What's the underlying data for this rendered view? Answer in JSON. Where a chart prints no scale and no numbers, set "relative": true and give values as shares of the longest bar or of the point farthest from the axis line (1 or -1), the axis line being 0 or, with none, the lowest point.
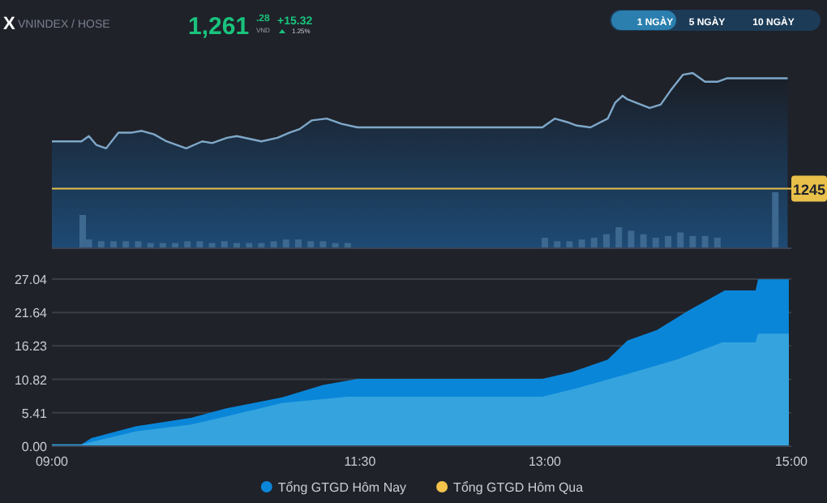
{
  "chart_data": [
    {
      "type": "area",
      "title": "X",
      "subtitle": "VNINDEX / HOSE",
      "annotations": [
        "1,261",
        ".28",
        "VND",
        "+15.32",
        "1.25%",
        "1 NGÀY",
        "5 NGÀY",
        "10 NGÀY",
        "1245"
      ],
      "relative": true,
      "xlim": [
        9,
        15
      ],
      "series": [
        {
          "color": "#7fa8c9",
          "x": [
            9.0,
            9.24,
            9.3,
            9.36,
            9.44,
            9.54,
            9.65,
            9.73,
            9.83,
            9.93,
            10.09,
            10.22,
            10.3,
            10.42,
            10.5,
            10.7,
            10.83,
            10.93,
            11.01,
            11.11,
            11.23,
            11.35,
            11.48,
            12.98,
            13.08,
            13.18,
            13.26,
            13.37,
            13.51,
            13.57,
            13.63,
            13.67,
            13.85,
            13.94,
            14.02,
            14.12,
            14.2,
            14.3,
            14.4,
            14.48,
            14.97
          ],
          "values": [
            0.61,
            0.61,
            0.64,
            0.59,
            0.57,
            0.66,
            0.66,
            0.67,
            0.65,
            0.61,
            0.57,
            0.61,
            0.6,
            0.63,
            0.64,
            0.61,
            0.63,
            0.66,
            0.68,
            0.73,
            0.74,
            0.71,
            0.69,
            0.69,
            0.74,
            0.72,
            0.7,
            0.69,
            0.74,
            0.83,
            0.87,
            0.85,
            0.8,
            0.82,
            0.9,
            0.99,
            1.0,
            0.95,
            0.95,
            0.97,
            0.97
          ]
        },
        {
          "type": "bar",
          "color": "#3d6890",
          "x": [
            9.25,
            9.3,
            9.4,
            9.5,
            9.6,
            9.7,
            9.8,
            9.9,
            10.0,
            10.1,
            10.2,
            10.3,
            10.4,
            10.5,
            10.6,
            10.7,
            10.8,
            10.9,
            11.0,
            11.1,
            11.2,
            11.3,
            11.4,
            13.0,
            13.1,
            13.2,
            13.3,
            13.4,
            13.5,
            13.6,
            13.7,
            13.8,
            13.9,
            14.0,
            14.1,
            14.2,
            14.3,
            14.4,
            14.87
          ],
          "values": [
            0.19,
            0.05,
            0.04,
            0.04,
            0.04,
            0.04,
            0.03,
            0.03,
            0.03,
            0.04,
            0.04,
            0.03,
            0.04,
            0.03,
            0.03,
            0.03,
            0.04,
            0.05,
            0.05,
            0.04,
            0.04,
            0.03,
            0.03,
            0.06,
            0.04,
            0.04,
            0.05,
            0.06,
            0.08,
            0.12,
            0.1,
            0.08,
            0.06,
            0.07,
            0.09,
            0.07,
            0.07,
            0.06,
            0.32
          ]
        }
      ],
      "ref_lines": [
        {
          "axis": "y",
          "value": 0.34,
          "color": "#e8c04a"
        }
      ]
    },
    {
      "type": "area",
      "xlim": [
        9,
        15
      ],
      "xticks": [
        {
          "value": 9,
          "label": "09:00"
        },
        {
          "value": 11.5,
          "label": "11:30"
        },
        {
          "value": 13,
          "label": "13:00"
        },
        {
          "value": 15,
          "label": "15:00"
        }
      ],
      "ylim": [
        0,
        27.04
      ],
      "yticks": [
        {
          "value": 0,
          "label": "0.00"
        },
        5.41,
        10.82,
        16.23,
        21.64,
        27.04
      ],
      "grid": "y",
      "legend": "bottom",
      "series": [
        {
          "name": "Tổng GTGD Hôm Nay",
          "color": "#0a86d9",
          "x": [
            9.0,
            9.24,
            9.32,
            9.68,
            10.13,
            10.41,
            10.87,
            11.2,
            11.48,
            12.98,
            13.22,
            13.51,
            13.67,
            13.91,
            14.16,
            14.46,
            14.71,
            14.73,
            14.98
          ],
          "values": [
            0.3,
            0.3,
            1.3,
            3.2,
            4.6,
            6.1,
            7.9,
            9.9,
            10.9,
            10.9,
            12.0,
            14.0,
            17.1,
            18.8,
            21.9,
            25.2,
            25.2,
            27.0,
            27.0
          ]
        },
        {
          "color": "#35a4de",
          "x": [
            9.0,
            9.24,
            9.68,
            10.13,
            10.41,
            10.87,
            11.4,
            12.98,
            13.26,
            13.62,
            14.07,
            14.44,
            14.71,
            14.73,
            14.98
          ],
          "values": [
            0.3,
            0.3,
            2.4,
            3.5,
            4.8,
            7.0,
            8.0,
            8.0,
            9.4,
            11.4,
            14.0,
            16.8,
            16.8,
            18.2,
            18.2
          ]
        },
        {
          "name": "Tổng GTGD Hôm Qua",
          "color": "#f5c34a"
        }
      ]
    }
  ]
}
